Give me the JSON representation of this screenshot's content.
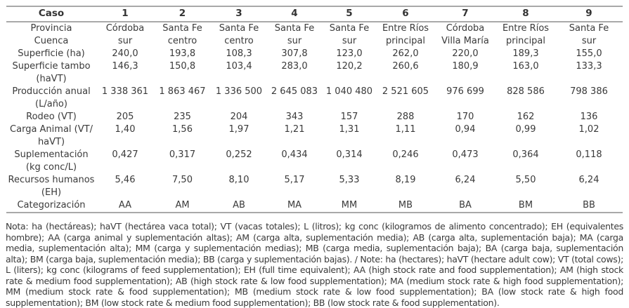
{
  "table": {
    "header": {
      "corner": "Caso",
      "cases": [
        "1",
        "2",
        "3",
        "4",
        "5",
        "6",
        "7",
        "8",
        "9"
      ]
    },
    "rows": [
      {
        "label": "Provincia\nCuenca",
        "values": [
          "Córdoba\nsur",
          "Santa Fe\ncentro",
          "Santa Fe\ncentro",
          "Santa Fe\nsur",
          "Santa Fe\nsur",
          "Entre Ríos\nprincipal",
          "Córdoba\nVilla María",
          "Entre Ríos\nprincipal",
          "Santa Fe\nsur"
        ]
      },
      {
        "label": "Superficie (ha)",
        "values": [
          "240,0",
          "193,8",
          "108,3",
          "307,8",
          "123,0",
          "262,0",
          "220,0",
          "189,3",
          "155,0"
        ]
      },
      {
        "label": "Superficie tambo\n(haVT)",
        "values": [
          "146,3",
          "150,8",
          "103,4",
          "283,0",
          "120,2",
          "260,6",
          "180,9",
          "163,0",
          "133,3"
        ]
      },
      {
        "label": "Producción anual\n(L/año)",
        "values": [
          "1 338 361",
          "1 863 467",
          "1 336 500",
          "2 645 083",
          "1 040 480",
          "2 521 605",
          "976 699",
          "828 586",
          "798 386"
        ]
      },
      {
        "label": "Rodeo (VT)",
        "values": [
          "205",
          "235",
          "204",
          "343",
          "157",
          "288",
          "170",
          "162",
          "136"
        ]
      },
      {
        "label": "Carga Animal (VT/\nhaVT)",
        "values": [
          "1,40",
          "1,56",
          "1,97",
          "1,21",
          "1,31",
          "1,11",
          "0,94",
          "0,99",
          "1,02"
        ]
      },
      {
        "label": "Suplementación\n(kg conc/L)",
        "values": [
          "0,427",
          "0,317",
          "0,252",
          "0,434",
          "0,314",
          "0,246",
          "0,473",
          "0,364",
          "0,118"
        ]
      },
      {
        "label": "Recursos humanos\n(EH)",
        "values": [
          "5,46",
          "7,50",
          "8,10",
          "5,17",
          "5,33",
          "8,19",
          "6,24",
          "5,50",
          "6,24"
        ]
      },
      {
        "label": "Categorización",
        "values": [
          "AA",
          "AM",
          "AB",
          "MA",
          "MM",
          "MB",
          "BA",
          "BM",
          "BB"
        ]
      }
    ]
  },
  "note": "Nota: ha (hectáreas); haVT (hectárea vaca total); VT (vacas totales); L (litros); kg conc (kilogramos de alimento concentrado); EH (equivalentes hombre); AA (carga animal y suplementación altas); AM (carga alta, suplementación media); AB (carga alta, suplementación baja); MA (carga media, suplementación alta); MM (carga y suplementación medias); MB (carga media, suplementación baja); BA (carga baja, suplementación alta); BM (carga baja, suplementación media); BB (carga y suplementación bajas). / Note: ha (hectares); haVT (hectare adult cow); VT (total cows); L (liters); kg conc (kilograms of feed supplementation); EH (full time equivalent); AA (high stock rate and food supplementation); AM (high stock rate & medium food supplementation); AB (high stock rate & low food supplementation); MA (medium stock rate & high food supplementation); MM (medium stock rate & food supplementation); MB (medium stock rate & low food supplementation); BA (low stock rate & high food supplementation); BM (low stock rate & medium food supplementation); BB (low stock rate & food supplementation).",
  "colors": {
    "text": "#3a3a3a",
    "border": "#a9a9a9"
  }
}
